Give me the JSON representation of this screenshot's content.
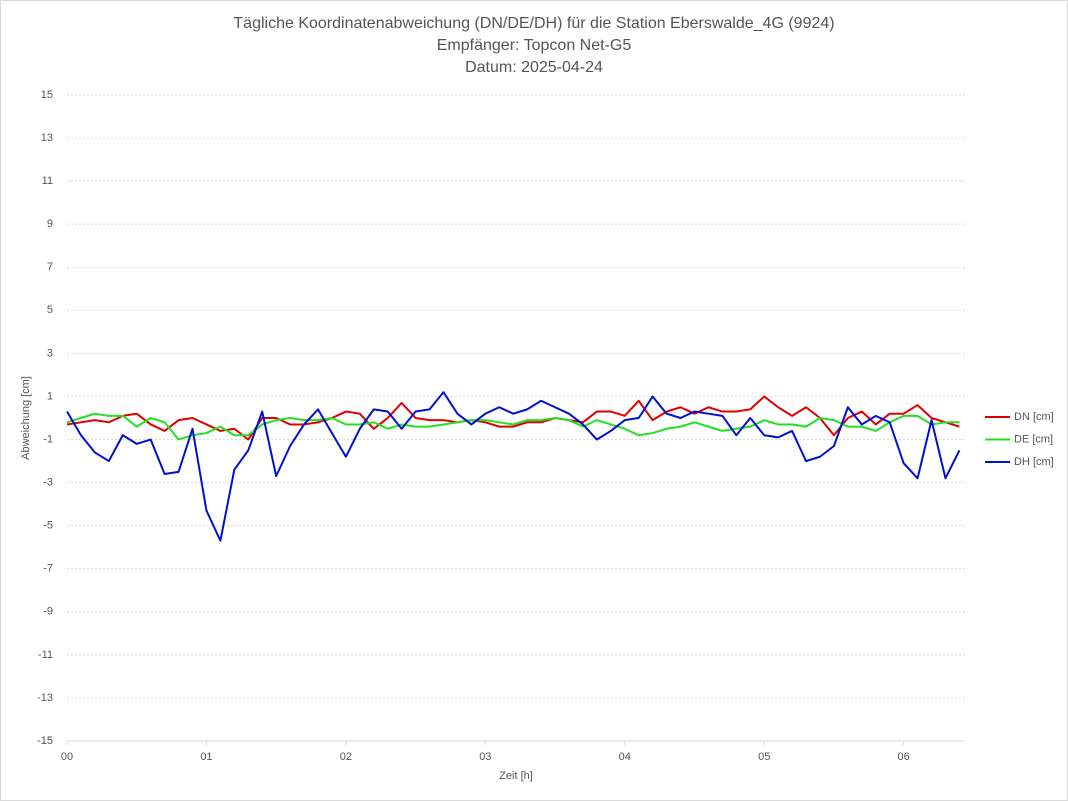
{
  "chart_data": {
    "type": "line",
    "title": "Tägliche Koordinatenabweichung (DN/DE/DH) für die Station Eberswalde_4G (9924)",
    "subtitle": [
      "Empfänger: Topcon Net-G5",
      "Datum: 2025-04-24"
    ],
    "x_label": "Zeit [h]",
    "y_label": "Abweichung [cm]",
    "x": [
      0,
      0.1,
      0.2,
      0.3,
      0.4,
      0.5,
      0.6,
      0.7,
      0.8,
      0.9,
      1,
      1.1,
      1.2,
      1.3,
      1.4,
      1.5,
      1.6,
      1.7,
      1.8,
      1.9,
      2,
      2.1,
      2.2,
      2.3,
      2.4,
      2.5,
      2.6,
      2.7,
      2.8,
      2.9,
      3,
      3.1,
      3.2,
      3.3,
      3.4,
      3.5,
      3.6,
      3.7,
      3.8,
      3.9,
      4,
      4.1,
      4.2,
      4.3,
      4.4,
      4.5,
      4.6,
      4.7,
      4.8,
      4.9,
      5,
      5.1,
      5.2,
      5.3,
      5.4,
      5.5,
      5.6,
      5.7,
      5.8,
      5.9,
      6,
      6.1,
      6.2,
      6.3,
      6.4
    ],
    "series": [
      {
        "name": "DN [cm]",
        "color": "#e00000",
        "values": [
          -0.3,
          -0.2,
          -0.1,
          -0.2,
          0.1,
          0.2,
          -0.3,
          -0.6,
          -0.1,
          0.0,
          -0.3,
          -0.6,
          -0.5,
          -1.0,
          0.0,
          0.0,
          -0.3,
          -0.3,
          -0.2,
          0.0,
          0.3,
          0.2,
          -0.5,
          0.0,
          0.7,
          0.0,
          -0.1,
          -0.1,
          -0.2,
          -0.1,
          -0.2,
          -0.4,
          -0.4,
          -0.2,
          -0.2,
          0.0,
          -0.1,
          -0.2,
          0.3,
          0.3,
          0.1,
          0.8,
          -0.1,
          0.3,
          0.5,
          0.2,
          0.5,
          0.3,
          0.3,
          0.4,
          1.0,
          0.5,
          0.1,
          0.5,
          0.0,
          -0.8,
          0.0,
          0.3,
          -0.3,
          0.2,
          0.2,
          0.6,
          0.0,
          -0.2,
          -0.4
        ]
      },
      {
        "name": "DE [cm]",
        "color": "#22e022",
        "values": [
          -0.2,
          0.0,
          0.2,
          0.1,
          0.1,
          -0.4,
          0.0,
          -0.2,
          -1.0,
          -0.8,
          -0.7,
          -0.4,
          -0.8,
          -0.8,
          -0.3,
          -0.1,
          0.0,
          -0.1,
          -0.1,
          0.0,
          -0.3,
          -0.3,
          -0.2,
          -0.5,
          -0.3,
          -0.4,
          -0.4,
          -0.3,
          -0.2,
          -0.1,
          -0.1,
          -0.2,
          -0.3,
          -0.1,
          -0.1,
          0.0,
          -0.1,
          -0.4,
          -0.1,
          -0.3,
          -0.5,
          -0.8,
          -0.7,
          -0.5,
          -0.4,
          -0.2,
          -0.4,
          -0.6,
          -0.5,
          -0.4,
          -0.1,
          -0.3,
          -0.3,
          -0.4,
          0.0,
          -0.1,
          -0.4,
          -0.4,
          -0.6,
          -0.2,
          0.1,
          0.1,
          -0.3,
          -0.2,
          -0.2
        ]
      },
      {
        "name": "DH [cm]",
        "color": "#0010d0",
        "values": [
          0.3,
          -0.8,
          -1.6,
          -2.0,
          -0.8,
          -1.2,
          -1.0,
          -2.6,
          -2.5,
          -0.5,
          -4.3,
          -5.7,
          -2.4,
          -1.5,
          0.3,
          -2.7,
          -1.3,
          -0.3,
          0.4,
          -0.7,
          -1.8,
          -0.5,
          0.4,
          0.3,
          -0.5,
          0.3,
          0.4,
          1.2,
          0.2,
          -0.3,
          0.2,
          0.5,
          0.2,
          0.4,
          0.8,
          0.5,
          0.2,
          -0.3,
          -1.0,
          -0.6,
          -0.1,
          0.0,
          1.0,
          0.2,
          0.0,
          0.3,
          0.2,
          0.1,
          -0.8,
          0.0,
          -0.8,
          -0.9,
          -0.6,
          -2.0,
          -1.8,
          -1.3,
          0.5,
          -0.3,
          0.1,
          -0.2,
          -2.1,
          -2.8,
          -0.1,
          -2.8,
          -1.5
        ]
      }
    ],
    "xlim": [
      0,
      6.44
    ],
    "ylim": [
      -15,
      15
    ],
    "xticks": [
      {
        "value": 0,
        "label": "00"
      },
      {
        "value": 1,
        "label": "01"
      },
      {
        "value": 2,
        "label": "02"
      },
      {
        "value": 3,
        "label": "03"
      },
      {
        "value": 4,
        "label": "04"
      },
      {
        "value": 5,
        "label": "05"
      },
      {
        "value": 6,
        "label": "06"
      }
    ],
    "yticks": [
      15,
      13,
      11,
      9,
      7,
      5,
      3,
      1,
      -1,
      -3,
      -5,
      -7,
      -9,
      -11,
      -13,
      -15
    ],
    "grid": true,
    "legend": "right"
  }
}
